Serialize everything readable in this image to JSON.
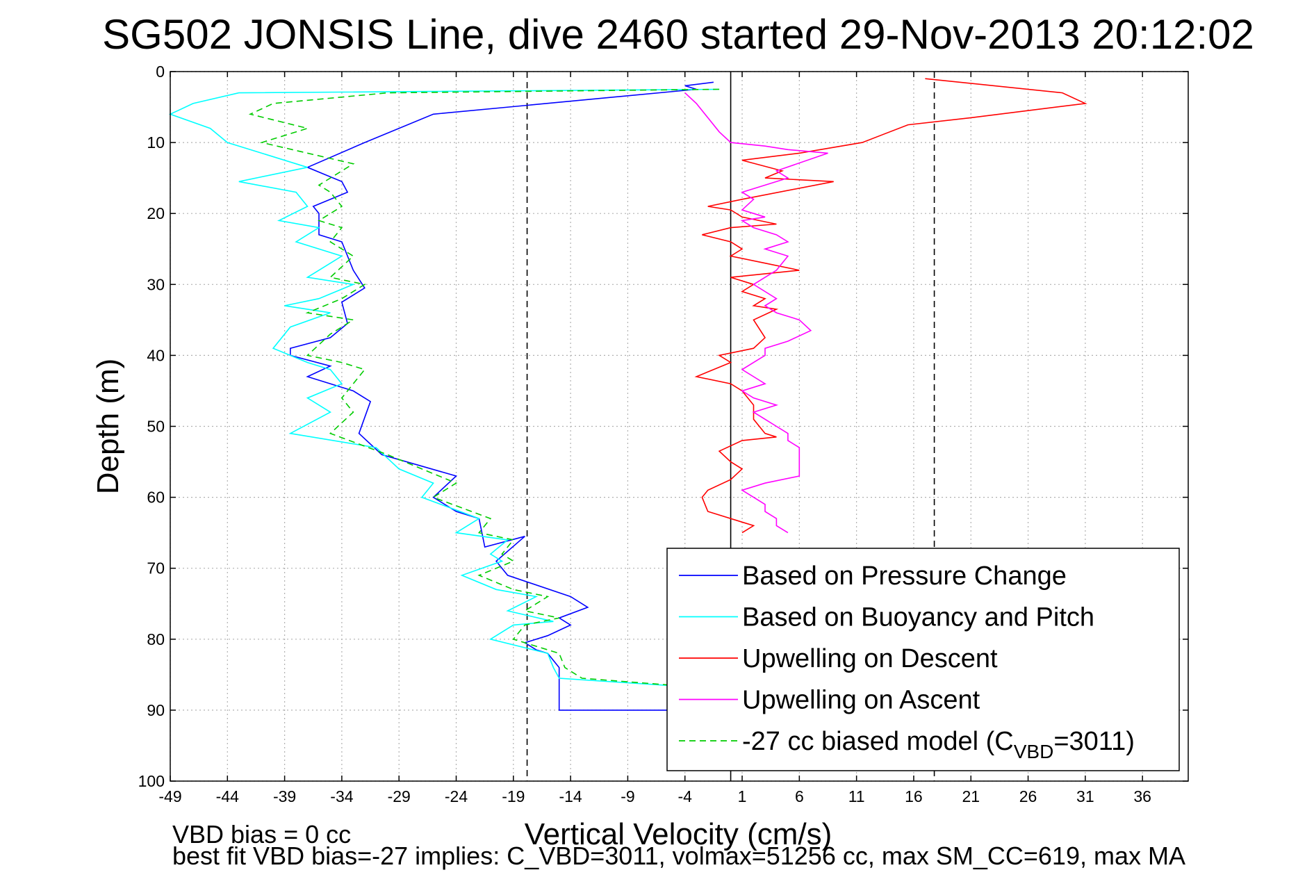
{
  "chart_data": {
    "type": "line",
    "title": "SG502 JONSIS Line, dive 2460 started 29-Nov-2013 20:12:02",
    "xlabel": "Vertical Velocity (cm/s)",
    "ylabel": "Depth (m)",
    "xlim": [
      -49,
      40
    ],
    "ylim": [
      0,
      100
    ],
    "y_reversed": true,
    "grid": true,
    "x_ticks": [
      -49,
      -44,
      -39,
      -34,
      -29,
      -24,
      -19,
      -14,
      -9,
      -4,
      1,
      6,
      11,
      16,
      21,
      26,
      31,
      36
    ],
    "y_ticks": [
      0,
      10,
      20,
      30,
      40,
      50,
      60,
      70,
      80,
      90,
      100
    ],
    "reference_lines": [
      {
        "x": -17.8,
        "style": "dashed",
        "color": "#000000"
      },
      {
        "x": 0,
        "style": "solid",
        "color": "#000000"
      },
      {
        "x": 17.8,
        "style": "dashed",
        "color": "#000000"
      }
    ],
    "legend_position": "bottom-right",
    "legend": [
      {
        "label": "Based on Pressure Change",
        "color": "#0000ff",
        "dash": "solid"
      },
      {
        "label": "Based on Buoyancy and Pitch",
        "color": "#00ffff",
        "dash": "solid"
      },
      {
        "label": "Upwelling on Descent",
        "color": "#ff0000",
        "dash": "solid"
      },
      {
        "label": "Upwelling on Ascent",
        "color": "#ff00ff",
        "dash": "solid"
      },
      {
        "label_main": "-27 cc biased model (C",
        "label_sub": "VBD",
        "label_end": "=3011)",
        "color": "#00cc00",
        "dash": "dashed"
      }
    ],
    "series": [
      {
        "name": "Based on Pressure Change",
        "color": "#0000ff",
        "dash": "solid",
        "points": [
          [
            -1.5,
            1.5
          ],
          [
            -4,
            2
          ],
          [
            -3,
            2.5
          ],
          [
            -26,
            6
          ],
          [
            -32,
            10
          ],
          [
            -37,
            13.5
          ],
          [
            -34,
            15.5
          ],
          [
            -33.5,
            17
          ],
          [
            -36.5,
            19
          ],
          [
            -36,
            20
          ],
          [
            -36,
            23
          ],
          [
            -34,
            24
          ],
          [
            -33,
            28
          ],
          [
            -32,
            30.5
          ],
          [
            -34,
            32.5
          ],
          [
            -33.5,
            35.5
          ],
          [
            -35,
            37.5
          ],
          [
            -38.5,
            39
          ],
          [
            -38.5,
            40
          ],
          [
            -35,
            41.5
          ],
          [
            -37,
            43
          ],
          [
            -33,
            45
          ],
          [
            -31.5,
            46.5
          ],
          [
            -32.5,
            51
          ],
          [
            -30.5,
            54
          ],
          [
            -24,
            57
          ],
          [
            -26,
            60
          ],
          [
            -24,
            62
          ],
          [
            -22,
            63
          ],
          [
            -21.5,
            67
          ],
          [
            -18,
            65.5
          ],
          [
            -20.5,
            69
          ],
          [
            -19.5,
            71
          ],
          [
            -14,
            74
          ],
          [
            -12.5,
            75.5
          ],
          [
            -15,
            77
          ],
          [
            -14,
            78
          ],
          [
            -16,
            79.5
          ],
          [
            -18,
            80.5
          ],
          [
            -17,
            81.5
          ],
          [
            -16,
            82
          ],
          [
            -15,
            84
          ],
          [
            -15,
            87
          ],
          [
            -15,
            90
          ],
          [
            -5.5,
            90
          ],
          [
            -5,
            92
          ]
        ]
      },
      {
        "name": "Based on Buoyancy and Pitch",
        "color": "#00ffff",
        "dash": "solid",
        "points": [
          [
            -1,
            2.5
          ],
          [
            -43,
            3
          ],
          [
            -47,
            4.5
          ],
          [
            -49,
            6
          ],
          [
            -45.5,
            8
          ],
          [
            -44,
            10
          ],
          [
            -37,
            13.5
          ],
          [
            -43,
            15.5
          ],
          [
            -38,
            17
          ],
          [
            -37,
            19
          ],
          [
            -39.5,
            21
          ],
          [
            -36,
            22
          ],
          [
            -38,
            24
          ],
          [
            -34,
            26
          ],
          [
            -37,
            29
          ],
          [
            -33,
            30
          ],
          [
            -36,
            32
          ],
          [
            -39,
            33
          ],
          [
            -35,
            34
          ],
          [
            -38.5,
            36
          ],
          [
            -40,
            39
          ],
          [
            -37,
            41
          ],
          [
            -35,
            42
          ],
          [
            -34,
            44
          ],
          [
            -37,
            46
          ],
          [
            -35,
            48
          ],
          [
            -38.5,
            51
          ],
          [
            -31,
            53
          ],
          [
            -29,
            56
          ],
          [
            -26,
            58
          ],
          [
            -27,
            60
          ],
          [
            -22,
            63
          ],
          [
            -24,
            65
          ],
          [
            -19.5,
            66
          ],
          [
            -21,
            68
          ],
          [
            -20,
            69
          ],
          [
            -23.5,
            71
          ],
          [
            -20.5,
            73
          ],
          [
            -17,
            74
          ],
          [
            -19.5,
            76
          ],
          [
            -15.5,
            77.5
          ],
          [
            -19,
            78
          ],
          [
            -21,
            80
          ],
          [
            -16,
            82
          ],
          [
            -15.5,
            84
          ],
          [
            -15,
            85.5
          ],
          [
            -1,
            87
          ]
        ]
      },
      {
        "name": "Upwelling on Descent",
        "color": "#ff0000",
        "dash": "solid",
        "points": [
          [
            17,
            1
          ],
          [
            29,
            3
          ],
          [
            31,
            4.5
          ],
          [
            21,
            6.5
          ],
          [
            15.5,
            7.5
          ],
          [
            11.5,
            10
          ],
          [
            6,
            11.5
          ],
          [
            1,
            12.5
          ],
          [
            4.5,
            14
          ],
          [
            3,
            15
          ],
          [
            9,
            15.5
          ],
          [
            1,
            18
          ],
          [
            -2,
            19
          ],
          [
            0,
            19.5
          ],
          [
            1,
            20.5
          ],
          [
            2.5,
            21
          ],
          [
            4,
            21.5
          ],
          [
            0,
            22
          ],
          [
            -2.5,
            23
          ],
          [
            0,
            24
          ],
          [
            1,
            25
          ],
          [
            0,
            26
          ],
          [
            3,
            27
          ],
          [
            6,
            28
          ],
          [
            0,
            29
          ],
          [
            2,
            30
          ],
          [
            1,
            31
          ],
          [
            3,
            32
          ],
          [
            2,
            33
          ],
          [
            4,
            33.5
          ],
          [
            2,
            35
          ],
          [
            3,
            37.5
          ],
          [
            2,
            39
          ],
          [
            -1,
            40
          ],
          [
            0,
            41
          ],
          [
            -3,
            43
          ],
          [
            0,
            44
          ],
          [
            1,
            45
          ],
          [
            2,
            47
          ],
          [
            2,
            49
          ],
          [
            3,
            51
          ],
          [
            4,
            51.5
          ],
          [
            1,
            52
          ],
          [
            -1,
            53.5
          ],
          [
            0,
            55
          ],
          [
            1,
            56
          ],
          [
            0,
            57.5
          ],
          [
            -2,
            59
          ],
          [
            -2.5,
            60
          ],
          [
            -2,
            62
          ],
          [
            1,
            63.5
          ],
          [
            2,
            64
          ],
          [
            1,
            65
          ]
        ]
      },
      {
        "name": "Upwelling on Ascent",
        "color": "#ff00ff",
        "dash": "solid",
        "points": [
          [
            -4,
            3
          ],
          [
            -3,
            4.5
          ],
          [
            -2,
            6.5
          ],
          [
            -1,
            8.5
          ],
          [
            0,
            10
          ],
          [
            3,
            10.5
          ],
          [
            5,
            11
          ],
          [
            8.5,
            11.5
          ],
          [
            4,
            14
          ],
          [
            5,
            15
          ],
          [
            3,
            16
          ],
          [
            1,
            17
          ],
          [
            2,
            18
          ],
          [
            1,
            19.5
          ],
          [
            2,
            20
          ],
          [
            3,
            20.5
          ],
          [
            1,
            21
          ],
          [
            2,
            22
          ],
          [
            4,
            23
          ],
          [
            5,
            24
          ],
          [
            3,
            25
          ],
          [
            5,
            26
          ],
          [
            4,
            28
          ],
          [
            2,
            30
          ],
          [
            3,
            31
          ],
          [
            4,
            32
          ],
          [
            3,
            33
          ],
          [
            4,
            34
          ],
          [
            6,
            35
          ],
          [
            7,
            36.5
          ],
          [
            5,
            38
          ],
          [
            3,
            39
          ],
          [
            3,
            40
          ],
          [
            2,
            41
          ],
          [
            1,
            42
          ],
          [
            2,
            43
          ],
          [
            3,
            44
          ],
          [
            1,
            45
          ],
          [
            2,
            46
          ],
          [
            4,
            47
          ],
          [
            2,
            48
          ],
          [
            3,
            49
          ],
          [
            4,
            50
          ],
          [
            5,
            51
          ],
          [
            5,
            52
          ],
          [
            6,
            53
          ],
          [
            6,
            57
          ],
          [
            3,
            58
          ],
          [
            1,
            59
          ],
          [
            2,
            60
          ],
          [
            3,
            61
          ],
          [
            3,
            62
          ],
          [
            4,
            63
          ],
          [
            4,
            64
          ],
          [
            5,
            65
          ]
        ]
      },
      {
        "name": "-27 cc biased model (CVBD=3011)",
        "color": "#00cc00",
        "dash": "dashed",
        "points": [
          [
            -1,
            2.5
          ],
          [
            -30,
            3
          ],
          [
            -40,
            4.5
          ],
          [
            -42,
            6
          ],
          [
            -37,
            8
          ],
          [
            -41,
            10
          ],
          [
            -33,
            13
          ],
          [
            -36,
            16
          ],
          [
            -35,
            17
          ],
          [
            -34,
            19
          ],
          [
            -36,
            21
          ],
          [
            -34,
            22
          ],
          [
            -35,
            24
          ],
          [
            -33,
            26
          ],
          [
            -35,
            29
          ],
          [
            -32,
            30
          ],
          [
            -34,
            32
          ],
          [
            -37,
            34
          ],
          [
            -33,
            35
          ],
          [
            -35,
            37
          ],
          [
            -37,
            40
          ],
          [
            -34,
            41
          ],
          [
            -32,
            42
          ],
          [
            -33,
            44
          ],
          [
            -34,
            46
          ],
          [
            -33,
            48
          ],
          [
            -35,
            51
          ],
          [
            -30,
            54
          ],
          [
            -27,
            56
          ],
          [
            -24,
            58
          ],
          [
            -26,
            60
          ],
          [
            -21,
            63
          ],
          [
            -22,
            65
          ],
          [
            -19,
            66
          ],
          [
            -20,
            68
          ],
          [
            -19,
            69
          ],
          [
            -22,
            71
          ],
          [
            -19,
            73
          ],
          [
            -16,
            74
          ],
          [
            -18,
            76
          ],
          [
            -15,
            77
          ],
          [
            -18,
            78
          ],
          [
            -19,
            80
          ],
          [
            -15,
            82
          ],
          [
            -14.5,
            84
          ],
          [
            -13,
            85.5
          ],
          [
            -1,
            87
          ]
        ]
      }
    ],
    "footer_lines": [
      "VBD bias = 0 cc",
      "best fit VBD bias=-27 implies: C_VBD=3011, volmax=51256 cc, max SM_CC=619, max MA"
    ]
  }
}
